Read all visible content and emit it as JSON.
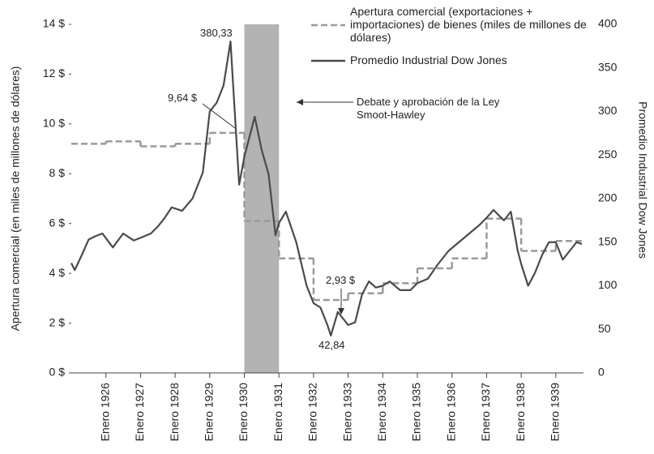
{
  "chart_data": {
    "type": "line",
    "y_label": "Apertura comercial (en miles de millones de dólares)",
    "y2_label": "Promedio Industrial Dow Jones",
    "xlim": [
      1925,
      1939.8
    ],
    "xticks": [
      {
        "value": 1926,
        "label": "Enero 1926"
      },
      {
        "value": 1927,
        "label": "Enero 1927"
      },
      {
        "value": 1928,
        "label": "Enero 1928"
      },
      {
        "value": 1929,
        "label": "Enero 1929"
      },
      {
        "value": 1930,
        "label": "Enero 1930"
      },
      {
        "value": 1931,
        "label": "Enero 1931"
      },
      {
        "value": 1932,
        "label": "Enero 1932"
      },
      {
        "value": 1933,
        "label": "Enero 1933"
      },
      {
        "value": 1934,
        "label": "Enero 1934"
      },
      {
        "value": 1935,
        "label": "Enero 1935"
      },
      {
        "value": 1936,
        "label": "Enero 1936"
      },
      {
        "value": 1937,
        "label": "Enero 1937"
      },
      {
        "value": 1938,
        "label": "Enero 1938"
      },
      {
        "value": 1939,
        "label": "Enero 1939"
      }
    ],
    "ylim": [
      0,
      14
    ],
    "yticks": [
      {
        "value": 0,
        "label": "0 $"
      },
      {
        "value": 2,
        "label": "2 $"
      },
      {
        "value": 4,
        "label": "4 $"
      },
      {
        "value": 6,
        "label": "6 $"
      },
      {
        "value": 8,
        "label": "8 $"
      },
      {
        "value": 10,
        "label": "10 $"
      },
      {
        "value": 12,
        "label": "12 $"
      },
      {
        "value": 14,
        "label": "14 $"
      }
    ],
    "y2lim": [
      0,
      400
    ],
    "y2ticks": [
      0,
      50,
      100,
      150,
      200,
      250,
      300,
      350,
      400
    ],
    "highlight": [
      1930,
      1931
    ],
    "series": [
      {
        "name": "Apertura comercial (exportaciones + importaciones) de bienes (miles de millones de dólares)",
        "color": "#9a9a9a",
        "style": "dashed-step",
        "x": [
          1925,
          1926,
          1927,
          1928,
          1929,
          1930,
          1931,
          1932,
          1933,
          1934,
          1935,
          1936,
          1937,
          1938,
          1939
        ],
        "values": [
          9.2,
          9.3,
          9.1,
          9.2,
          9.64,
          6.1,
          4.6,
          2.93,
          3.2,
          3.6,
          4.2,
          4.6,
          6.2,
          4.9,
          5.3
        ]
      },
      {
        "name": "Promedio Industrial Dow Jones",
        "color": "#4a4a4a",
        "axis": "y2",
        "style": "solid",
        "x": [
          1925.0,
          1925.1,
          1925.3,
          1925.5,
          1925.7,
          1925.9,
          1926.2,
          1926.5,
          1926.8,
          1927.0,
          1927.3,
          1927.5,
          1927.7,
          1927.9,
          1928.2,
          1928.5,
          1928.8,
          1929.0,
          1929.2,
          1929.4,
          1929.6,
          1929.85,
          1930.0,
          1930.3,
          1930.5,
          1930.7,
          1930.9,
          1931.0,
          1931.2,
          1931.5,
          1931.8,
          1932.0,
          1932.2,
          1932.4,
          1932.5,
          1932.7,
          1932.9,
          1933.0,
          1933.2,
          1933.4,
          1933.6,
          1933.8,
          1934.0,
          1934.2,
          1934.5,
          1934.8,
          1935.0,
          1935.3,
          1935.6,
          1935.9,
          1936.2,
          1936.5,
          1936.8,
          1937.0,
          1937.2,
          1937.5,
          1937.7,
          1937.9,
          1938.0,
          1938.2,
          1938.4,
          1938.6,
          1938.8,
          1939.0,
          1939.2,
          1939.4,
          1939.6,
          1939.75
        ],
        "values": [
          126,
          118,
          135,
          153,
          157,
          160,
          144,
          160,
          152,
          155,
          160,
          168,
          178,
          190,
          186,
          200,
          230,
          300,
          310,
          330,
          380.33,
          216,
          248,
          294,
          256,
          228,
          158,
          172,
          185,
          150,
          100,
          80,
          75,
          55,
          42.84,
          70,
          60,
          55,
          58,
          90,
          105,
          98,
          100,
          105,
          95,
          95,
          103,
          108,
          125,
          140,
          150,
          160,
          170,
          178,
          187,
          175,
          185,
          140,
          125,
          100,
          115,
          135,
          150,
          150,
          130,
          140,
          150,
          148
        ]
      }
    ],
    "annotations": [
      "380,33",
      "9,64 $",
      "2,93 $",
      "42,84",
      "Debate y aprobación de la Ley Smoot-Hawley"
    ]
  }
}
